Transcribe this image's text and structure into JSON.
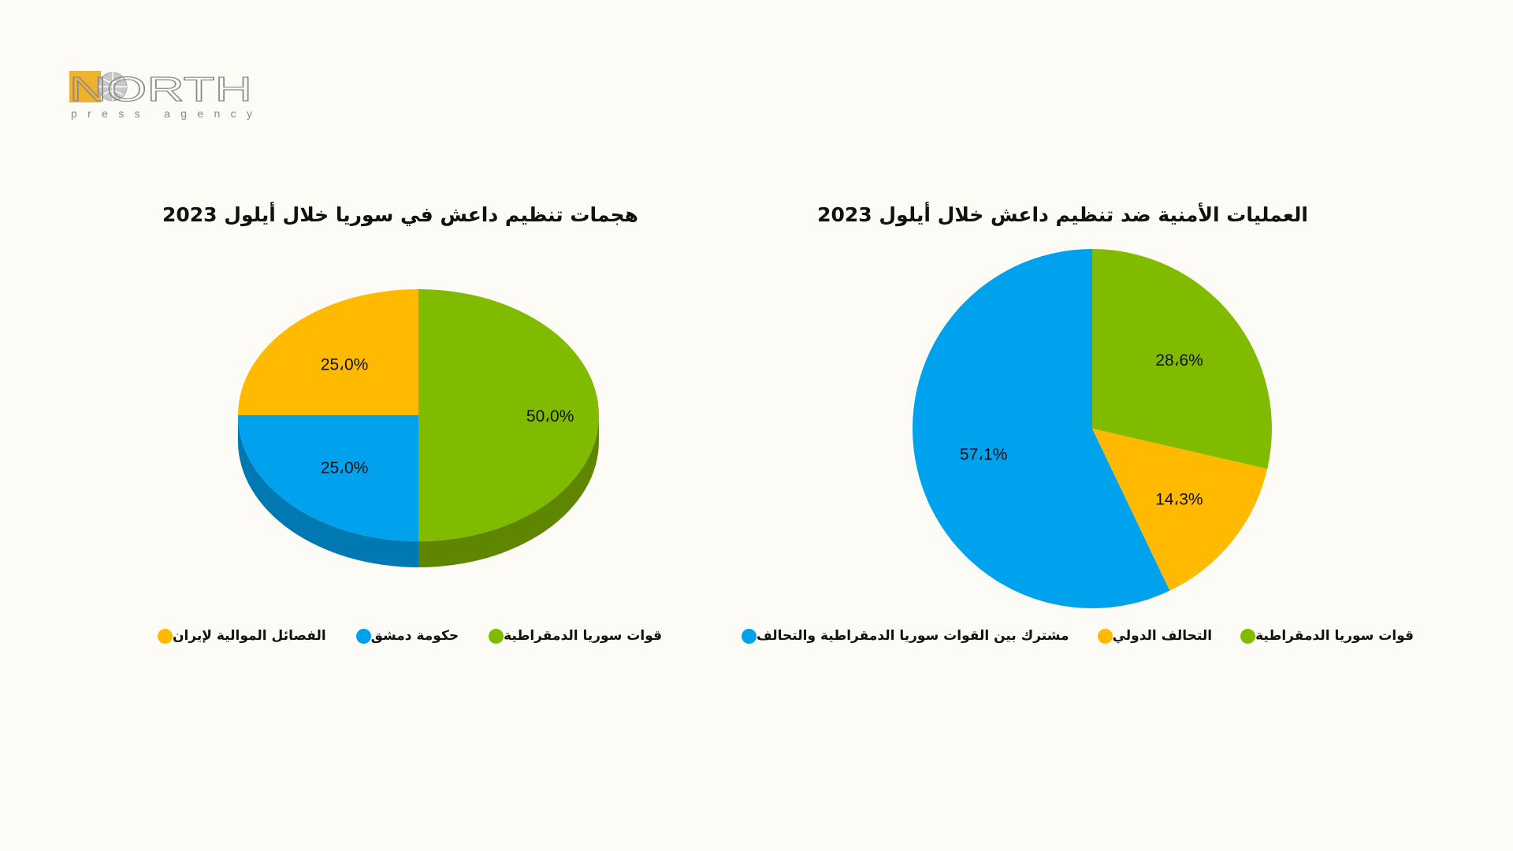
{
  "logo": {
    "wordmark": "NORTH",
    "tagline": "press agency"
  },
  "colors": {
    "green": "#80bb00",
    "blue": "#00a1ed",
    "yellow": "#ffba00",
    "green_side": "#5e8600",
    "blue_side": "#0079b3",
    "background": "#fdfbf5"
  },
  "chart_data": [
    {
      "type": "pie",
      "style": "3d",
      "title": "هجمات تنظيم داعش في سوريا خلال أيلول 2023",
      "categories": [
        "قوات سوريا الدمقراطية",
        "حكومة دمشق",
        "الفصائل الموالية لإيران"
      ],
      "values": [
        50.0,
        25.0,
        25.0
      ],
      "labels": [
        "50،0%",
        "25،0%",
        "25،0%"
      ],
      "colors": [
        "#80bb00",
        "#00a1ed",
        "#ffba00"
      ],
      "legend": {
        "position": "bottom",
        "entries": [
          "قوات سوريا الدمقراطية",
          "حكومة دمشق",
          "الفصائل الموالية لإيران"
        ]
      }
    },
    {
      "type": "pie",
      "style": "2d",
      "title": "العمليات الأمنية ضد تنظيم داعش خلال أيلول 2023",
      "categories": [
        "قوات سوريا الدمقراطية",
        "التحالف الدولي",
        "مشترك  بين القوات سوريا الدمقراطية  والتحالف"
      ],
      "values": [
        28.6,
        14.3,
        57.1
      ],
      "labels": [
        "28،6%",
        "14،3%",
        "57،1%"
      ],
      "colors": [
        "#80bb00",
        "#ffba00",
        "#00a1ed"
      ],
      "legend": {
        "position": "bottom",
        "entries": [
          "قوات سوريا الدمقراطية",
          "التحالف الدولي",
          "مشترك  بين القوات سوريا الدمقراطية  والتحالف"
        ]
      }
    }
  ]
}
